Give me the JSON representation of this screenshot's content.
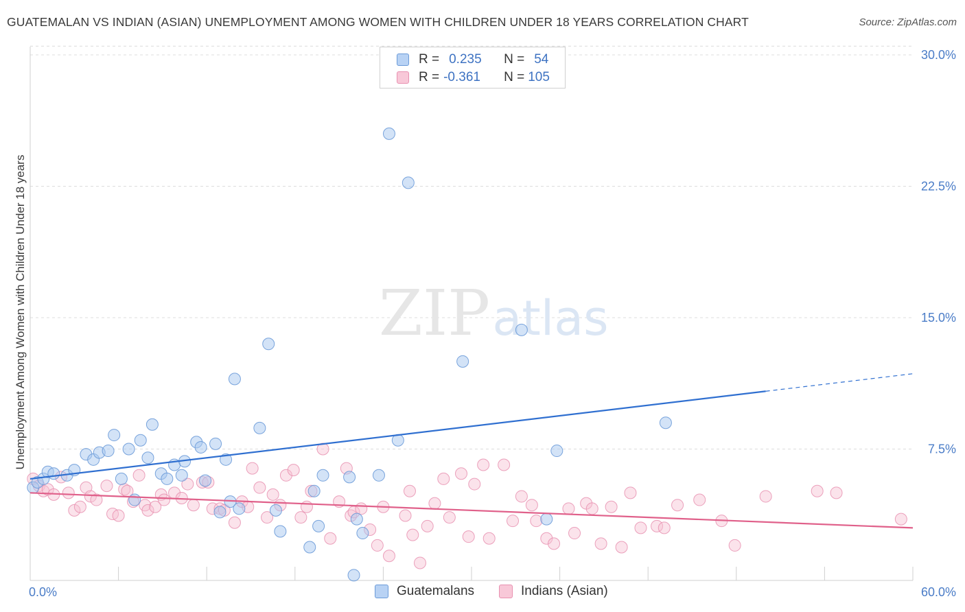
{
  "title": "GUATEMALAN VS INDIAN (ASIAN) UNEMPLOYMENT AMONG WOMEN WITH CHILDREN UNDER 18 YEARS CORRELATION CHART",
  "source": "Source: ZipAtlas.com",
  "watermark": {
    "zip": "ZIP",
    "atlas": "atlas"
  },
  "legend_stats": [
    {
      "r_label": "R =",
      "r_value": "0.235",
      "n_label": "N =",
      "n_value": "54"
    },
    {
      "r_label": "R =",
      "r_value": "-0.361",
      "n_label": "N =",
      "n_value": "105"
    }
  ],
  "colors": {
    "blue_fill": "#a8c8f0",
    "blue_stroke": "#6a9ad8",
    "blue_line": "#2f6fd0",
    "pink_fill": "#f6c0d2",
    "pink_stroke": "#e890b0",
    "pink_line": "#e0608a",
    "tick_text": "#4a7cc7"
  },
  "chart_data": {
    "type": "scatter",
    "title": "GUATEMALAN VS INDIAN (ASIAN) UNEMPLOYMENT AMONG WOMEN WITH CHILDREN UNDER 18 YEARS CORRELATION CHART",
    "xlabel": "",
    "ylabel": "Unemployment Among Women with Children Under 18 years",
    "xlim": [
      0,
      60
    ],
    "ylim": [
      0,
      30
    ],
    "x_tick_labels": [
      "0.0%",
      "60.0%"
    ],
    "y_tick_values": [
      7.5,
      15.0,
      22.5,
      30.0
    ],
    "y_tick_labels": [
      "7.5%",
      "15.0%",
      "22.5%",
      "30.0%"
    ],
    "grid": "horizontal dashed",
    "legend_position": "top-center and bottom",
    "series": [
      {
        "name": "Guatemalans",
        "r": 0.235,
        "n": 54,
        "trend": {
          "x0": 0,
          "y0": 5.8,
          "x1": 50,
          "y1": 10.8,
          "dashed_to_x": 60,
          "dashed_to_y": 11.8
        },
        "points": [
          [
            0.2,
            5.3
          ],
          [
            0.5,
            5.6
          ],
          [
            0.9,
            5.8
          ],
          [
            1.2,
            6.2
          ],
          [
            1.6,
            6.1
          ],
          [
            2.5,
            6.0
          ],
          [
            3.0,
            6.3
          ],
          [
            3.8,
            7.2
          ],
          [
            4.3,
            6.9
          ],
          [
            4.7,
            7.3
          ],
          [
            5.3,
            7.4
          ],
          [
            5.7,
            8.3
          ],
          [
            6.2,
            5.8
          ],
          [
            6.7,
            7.5
          ],
          [
            7.1,
            4.6
          ],
          [
            7.5,
            8.0
          ],
          [
            8.0,
            7.0
          ],
          [
            8.3,
            8.9
          ],
          [
            8.9,
            6.1
          ],
          [
            9.3,
            5.8
          ],
          [
            9.8,
            6.6
          ],
          [
            10.3,
            6.0
          ],
          [
            10.5,
            6.8
          ],
          [
            11.3,
            7.9
          ],
          [
            11.6,
            7.6
          ],
          [
            11.9,
            5.7
          ],
          [
            12.6,
            7.8
          ],
          [
            12.9,
            3.9
          ],
          [
            13.3,
            6.9
          ],
          [
            13.6,
            4.5
          ],
          [
            13.9,
            11.5
          ],
          [
            14.2,
            4.1
          ],
          [
            15.6,
            8.7
          ],
          [
            16.2,
            13.5
          ],
          [
            16.7,
            4.0
          ],
          [
            17.0,
            2.8
          ],
          [
            19.0,
            1.9
          ],
          [
            19.3,
            5.1
          ],
          [
            19.6,
            3.1
          ],
          [
            19.9,
            6.0
          ],
          [
            21.7,
            5.9
          ],
          [
            22.0,
            0.3
          ],
          [
            22.2,
            3.5
          ],
          [
            22.6,
            2.7
          ],
          [
            23.7,
            6.0
          ],
          [
            24.4,
            25.5
          ],
          [
            25.0,
            8.0
          ],
          [
            25.7,
            22.7
          ],
          [
            29.4,
            12.5
          ],
          [
            33.4,
            14.3
          ],
          [
            35.1,
            3.5
          ],
          [
            35.8,
            7.4
          ],
          [
            43.2,
            9.0
          ]
        ]
      },
      {
        "name": "Indians (Asian)",
        "r": -0.361,
        "n": 105,
        "trend": {
          "x0": 0,
          "y0": 5.0,
          "x1": 60,
          "y1": 3.0
        },
        "points": [
          [
            0.2,
            5.8
          ],
          [
            0.6,
            5.4
          ],
          [
            0.9,
            5.1
          ],
          [
            1.2,
            5.2
          ],
          [
            1.6,
            4.9
          ],
          [
            2.1,
            5.9
          ],
          [
            2.6,
            5.0
          ],
          [
            3.0,
            4.0
          ],
          [
            3.4,
            4.2
          ],
          [
            3.8,
            5.3
          ],
          [
            4.1,
            4.8
          ],
          [
            4.5,
            4.6
          ],
          [
            5.2,
            5.4
          ],
          [
            5.6,
            3.8
          ],
          [
            6.0,
            3.7
          ],
          [
            6.4,
            5.2
          ],
          [
            6.6,
            5.1
          ],
          [
            7.0,
            4.5
          ],
          [
            7.4,
            6.0
          ],
          [
            7.8,
            4.3
          ],
          [
            8.0,
            4.0
          ],
          [
            8.5,
            4.2
          ],
          [
            8.9,
            4.9
          ],
          [
            9.1,
            4.6
          ],
          [
            9.8,
            5.0
          ],
          [
            10.3,
            4.7
          ],
          [
            10.7,
            5.5
          ],
          [
            11.1,
            4.3
          ],
          [
            11.7,
            5.6
          ],
          [
            12.1,
            5.6
          ],
          [
            12.4,
            4.1
          ],
          [
            12.9,
            4.1
          ],
          [
            13.2,
            4.0
          ],
          [
            13.9,
            3.3
          ],
          [
            14.4,
            4.5
          ],
          [
            14.8,
            4.2
          ],
          [
            15.1,
            6.4
          ],
          [
            15.6,
            5.3
          ],
          [
            16.1,
            3.6
          ],
          [
            16.5,
            4.9
          ],
          [
            17.0,
            4.3
          ],
          [
            17.4,
            6.0
          ],
          [
            17.9,
            6.3
          ],
          [
            18.4,
            3.6
          ],
          [
            18.8,
            4.2
          ],
          [
            19.1,
            5.1
          ],
          [
            19.9,
            7.5
          ],
          [
            20.4,
            2.4
          ],
          [
            21.0,
            4.5
          ],
          [
            21.5,
            6.4
          ],
          [
            21.8,
            3.7
          ],
          [
            22.0,
            3.9
          ],
          [
            22.5,
            4.1
          ],
          [
            23.1,
            2.9
          ],
          [
            23.6,
            2.0
          ],
          [
            24.0,
            4.2
          ],
          [
            24.4,
            1.4
          ],
          [
            25.5,
            3.7
          ],
          [
            25.8,
            5.1
          ],
          [
            26.0,
            2.6
          ],
          [
            26.5,
            1.0
          ],
          [
            27.0,
            3.1
          ],
          [
            27.5,
            4.4
          ],
          [
            28.1,
            5.8
          ],
          [
            28.5,
            3.6
          ],
          [
            29.3,
            6.1
          ],
          [
            29.8,
            2.5
          ],
          [
            30.2,
            5.5
          ],
          [
            30.8,
            6.6
          ],
          [
            31.2,
            2.4
          ],
          [
            32.2,
            6.6
          ],
          [
            32.8,
            3.4
          ],
          [
            33.4,
            4.8
          ],
          [
            34.1,
            4.3
          ],
          [
            34.4,
            3.4
          ],
          [
            35.1,
            2.4
          ],
          [
            35.6,
            2.1
          ],
          [
            36.6,
            4.1
          ],
          [
            37.0,
            2.7
          ],
          [
            37.8,
            4.4
          ],
          [
            38.2,
            4.1
          ],
          [
            38.8,
            2.1
          ],
          [
            39.5,
            4.2
          ],
          [
            40.2,
            1.9
          ],
          [
            40.8,
            5.0
          ],
          [
            41.5,
            3.0
          ],
          [
            42.6,
            3.1
          ],
          [
            43.1,
            3.0
          ],
          [
            44.0,
            4.3
          ],
          [
            45.5,
            4.6
          ],
          [
            47.0,
            3.4
          ],
          [
            47.9,
            2.0
          ],
          [
            50.0,
            4.8
          ],
          [
            53.5,
            5.1
          ],
          [
            54.8,
            5.0
          ],
          [
            59.2,
            3.5
          ]
        ]
      }
    ]
  },
  "bottom_legend": [
    {
      "label": "Guatemalans"
    },
    {
      "label": "Indians (Asian)"
    }
  ]
}
